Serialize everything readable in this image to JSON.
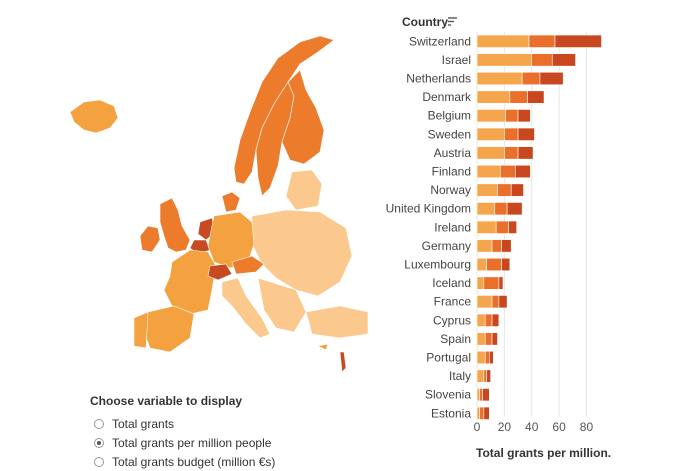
{
  "colors": {
    "segment1": "#f5a54b",
    "segment2": "#ea6f2a",
    "segment3": "#c8471f",
    "map_light": "#fbc98e",
    "map_mid": "#f4a13f",
    "map_dark": "#ec7b2c",
    "map_darkest": "#c84a23"
  },
  "chart_data": {
    "type": "bar",
    "orientation": "horizontal",
    "stacked": true,
    "title": "",
    "category_header": "Country",
    "xlabel": "Total grants per million.",
    "xlim": [
      0,
      95
    ],
    "xticks": [
      0,
      20,
      40,
      60,
      80
    ],
    "grid": true,
    "categories": [
      "Switzerland",
      "Israel",
      "Netherlands",
      "Denmark",
      "Belgium",
      "Sweden",
      "Austria",
      "Finland",
      "Norway",
      "United Kingdom",
      "Ireland",
      "Germany",
      "Luxembourg",
      "Iceland",
      "France",
      "Cyprus",
      "Spain",
      "Portugal",
      "Italy",
      "Slovenia",
      "Estonia"
    ],
    "series": [
      {
        "values": [
          38,
          40,
          33,
          24,
          21,
          20,
          20,
          17,
          15,
          13,
          14,
          11,
          7,
          5,
          11,
          6,
          6,
          6,
          5,
          2,
          2
        ]
      },
      {
        "values": [
          19,
          15,
          13,
          13,
          9,
          10,
          10,
          11,
          10,
          9,
          9,
          7,
          11,
          11,
          5,
          5,
          5,
          3,
          2,
          2,
          3
        ]
      },
      {
        "values": [
          34,
          17,
          17,
          12,
          9,
          12,
          11,
          11,
          9,
          11,
          6,
          7,
          6,
          3,
          6,
          5,
          4,
          3,
          3,
          5,
          4
        ]
      }
    ]
  },
  "controls": {
    "title": "Choose variable to display",
    "options": [
      {
        "label": "Total grants",
        "checked": false
      },
      {
        "label": "Total grants per million people",
        "checked": true
      },
      {
        "label": "Total grants budget (million €s)",
        "checked": false
      }
    ]
  }
}
